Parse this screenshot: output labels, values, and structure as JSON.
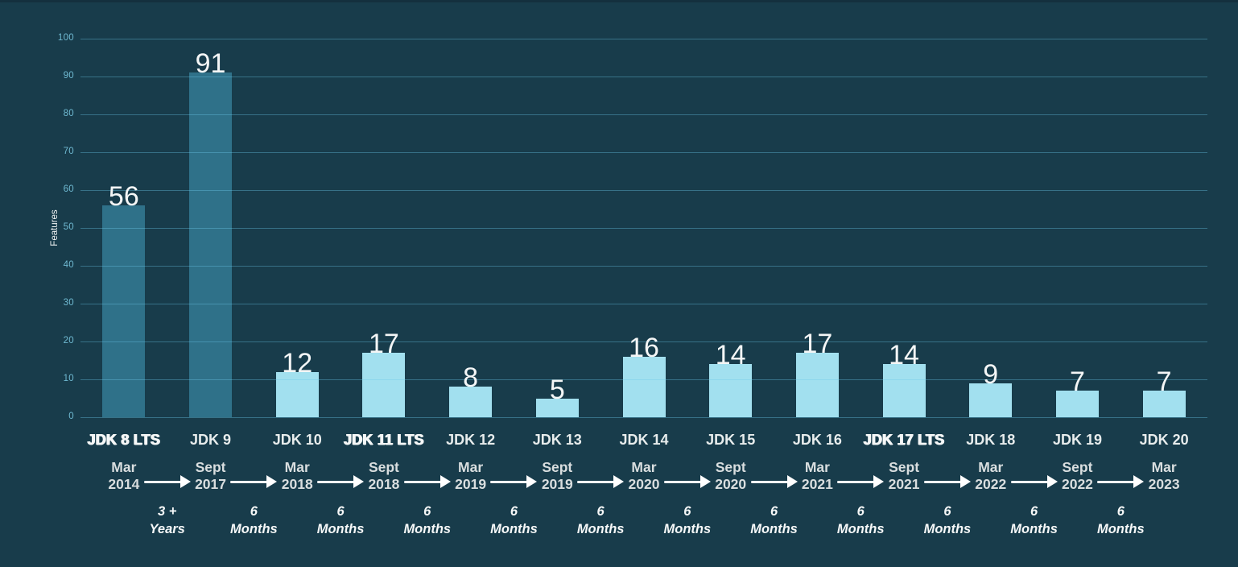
{
  "chart_data": {
    "type": "bar",
    "title": "",
    "ylabel": "Features",
    "ylim": [
      0,
      100
    ],
    "yticks": [
      0,
      10,
      20,
      30,
      40,
      50,
      60,
      70,
      80,
      90,
      100
    ],
    "grid": "horizontal",
    "legend": "none",
    "categories": [
      "JDK 8 LTS",
      "JDK 9",
      "JDK 10",
      "JDK 11 LTS",
      "JDK 12",
      "JDK 13",
      "JDK 14",
      "JDK 15",
      "JDK 16",
      "JDK 17 LTS",
      "JDK 18",
      "JDK 19",
      "JDK 20"
    ],
    "values": [
      56,
      91,
      12,
      17,
      8,
      5,
      16,
      14,
      17,
      14,
      9,
      7,
      7
    ],
    "lts": [
      true,
      false,
      false,
      true,
      false,
      false,
      false,
      false,
      false,
      true,
      false,
      false,
      false
    ],
    "bar_styles": [
      "dark",
      "dark",
      "light",
      "light",
      "light",
      "light",
      "light",
      "light",
      "light",
      "light",
      "light",
      "light",
      "light"
    ],
    "timeline": {
      "dates": [
        {
          "month": "Mar",
          "year": "2014"
        },
        {
          "month": "Sept",
          "year": "2017"
        },
        {
          "month": "Mar",
          "year": "2018"
        },
        {
          "month": "Sept",
          "year": "2018"
        },
        {
          "month": "Mar",
          "year": "2019"
        },
        {
          "month": "Sept",
          "year": "2019"
        },
        {
          "month": "Mar",
          "year": "2020"
        },
        {
          "month": "Sept",
          "year": "2020"
        },
        {
          "month": "Mar",
          "year": "2021"
        },
        {
          "month": "Sept",
          "year": "2021"
        },
        {
          "month": "Mar",
          "year": "2022"
        },
        {
          "month": "Sept",
          "year": "2022"
        },
        {
          "month": "Mar",
          "year": "2023"
        }
      ],
      "intervals": [
        {
          "top": "3 +",
          "bottom": "Years"
        },
        {
          "top": "6",
          "bottom": "Months"
        },
        {
          "top": "6",
          "bottom": "Months"
        },
        {
          "top": "6",
          "bottom": "Months"
        },
        {
          "top": "6",
          "bottom": "Months"
        },
        {
          "top": "6",
          "bottom": "Months"
        },
        {
          "top": "6",
          "bottom": "Months"
        },
        {
          "top": "6",
          "bottom": "Months"
        },
        {
          "top": "6",
          "bottom": "Months"
        },
        {
          "top": "6",
          "bottom": "Months"
        },
        {
          "top": "6",
          "bottom": "Months"
        },
        {
          "top": "6",
          "bottom": "Months"
        }
      ]
    },
    "colors": {
      "background": "#183C4B",
      "top_edge": "#14303E",
      "bar_dark": "#2F7189",
      "bar_light": "#A2E0EF",
      "gridline": "#6DC7E9",
      "tick_label": "#6FB9D1",
      "value_label": "#F4F6F6",
      "category_label": "#E7ECEC",
      "date_label": "#D9DEDF",
      "interval_label": "#F6F8F8",
      "arrow": "#FFFFFF"
    }
  }
}
